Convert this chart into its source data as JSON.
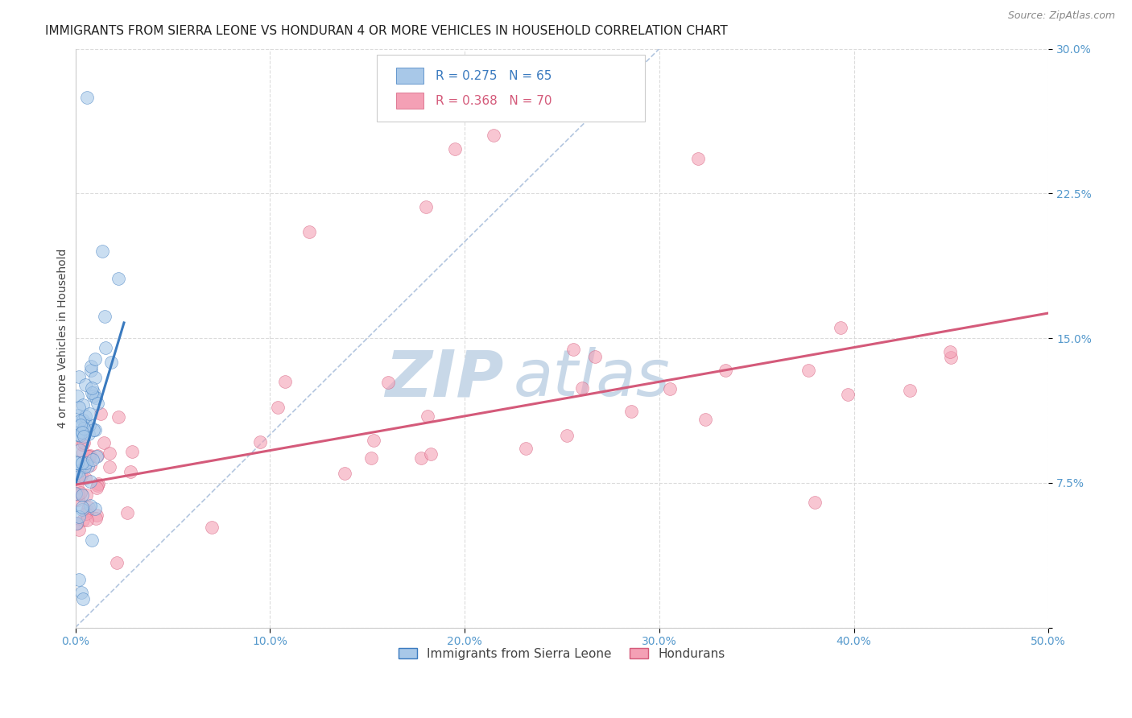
{
  "title": "IMMIGRANTS FROM SIERRA LEONE VS HONDURAN 4 OR MORE VEHICLES IN HOUSEHOLD CORRELATION CHART",
  "source": "Source: ZipAtlas.com",
  "ylabel": "4 or more Vehicles in Household",
  "xmin": 0.0,
  "xmax": 0.5,
  "ymin": 0.0,
  "ymax": 0.3,
  "xticks": [
    0.0,
    0.1,
    0.2,
    0.3,
    0.4,
    0.5
  ],
  "xtick_labels": [
    "0.0%",
    "10.0%",
    "20.0%",
    "30.0%",
    "40.0%",
    "50.0%"
  ],
  "yticks": [
    0.0,
    0.075,
    0.15,
    0.225,
    0.3
  ],
  "ytick_labels": [
    "",
    "7.5%",
    "15.0%",
    "22.5%",
    "30.0%"
  ],
  "legend_label1": "Immigrants from Sierra Leone",
  "legend_label2": "Hondurans",
  "legend_R1": "R = 0.275",
  "legend_N1": "N = 65",
  "legend_R2": "R = 0.368",
  "legend_N2": "N = 70",
  "color_blue": "#a8c8e8",
  "color_pink": "#f4a0b5",
  "color_line_blue": "#3a7abf",
  "color_line_pink": "#d45a7a",
  "color_diag": "#a0b8d8",
  "watermark_zip_color": "#c8d8e8",
  "watermark_atlas_color": "#c8d8e8",
  "grid_color": "#d8d8d8",
  "bg_color": "#ffffff",
  "title_fontsize": 11,
  "axis_label_fontsize": 10,
  "tick_fontsize": 10,
  "sl_blue_line_x0": 0.0,
  "sl_blue_line_y0": 0.074,
  "sl_blue_line_x1": 0.025,
  "sl_blue_line_y1": 0.158,
  "h_pink_line_x0": 0.0,
  "h_pink_line_y0": 0.074,
  "h_pink_line_x1": 0.5,
  "h_pink_line_y1": 0.163
}
